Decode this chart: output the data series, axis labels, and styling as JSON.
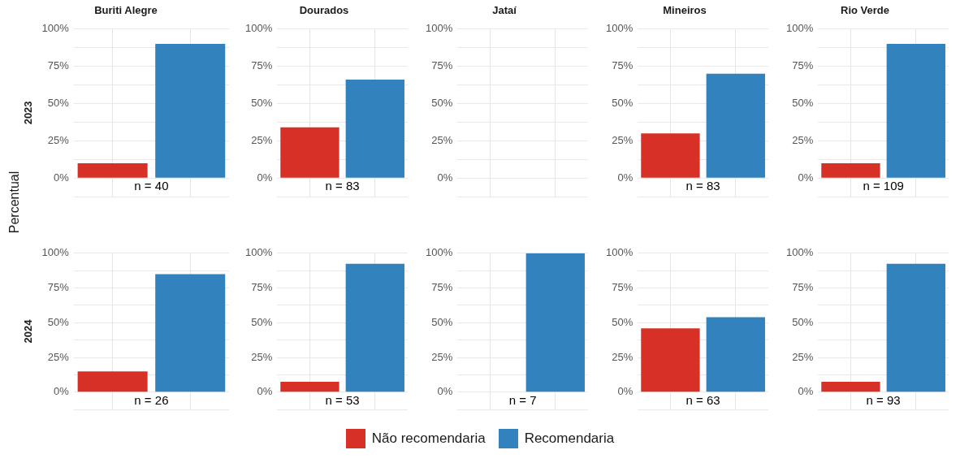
{
  "chart_data": [
    {
      "type": "bar",
      "title": "Buriti Alegre",
      "ylabel": "2023",
      "categories": [
        null,
        null
      ],
      "ylim": [
        -12.5,
        100
      ],
      "yticks": [
        {
          "value": -12.5,
          "label": null
        },
        {
          "value": 0,
          "label": "0%"
        },
        {
          "value": 12.5,
          "label": null
        },
        {
          "value": 25,
          "label": "25%"
        },
        {
          "value": 37.5,
          "label": null
        },
        {
          "value": 50,
          "label": "50%"
        },
        {
          "value": 62.5,
          "label": null
        },
        {
          "value": 75,
          "label": "75%"
        },
        {
          "value": 87.5,
          "label": null
        },
        {
          "value": 100,
          "label": "100%"
        }
      ],
      "grid": true,
      "tick_labels": "y",
      "legend": "bottom",
      "annotations": [
        "n = 40",
        "Percentual"
      ],
      "series": [
        {
          "name": "Não recomendaria",
          "color": "#d73027",
          "values": [
            10,
            null
          ]
        },
        {
          "name": "Recomendaria",
          "color": "#3182bd",
          "values": [
            null,
            90
          ]
        }
      ]
    },
    {
      "type": "bar",
      "title": "Dourados",
      "categories": [
        null,
        null
      ],
      "ylim": [
        -12.5,
        100
      ],
      "yticks": [
        {
          "value": -12.5,
          "label": null
        },
        {
          "value": 0,
          "label": "0%"
        },
        {
          "value": 12.5,
          "label": null
        },
        {
          "value": 25,
          "label": "25%"
        },
        {
          "value": 37.5,
          "label": null
        },
        {
          "value": 50,
          "label": "50%"
        },
        {
          "value": 62.5,
          "label": null
        },
        {
          "value": 75,
          "label": "75%"
        },
        {
          "value": 87.5,
          "label": null
        },
        {
          "value": 100,
          "label": "100%"
        }
      ],
      "grid": true,
      "tick_labels": "y",
      "annotations": [
        "n = 83"
      ],
      "series": [
        {
          "color": "#d73027",
          "values": [
            34,
            null
          ]
        },
        {
          "color": "#3182bd",
          "values": [
            null,
            66
          ]
        }
      ]
    },
    {
      "type": "bar",
      "title": "Jataí",
      "categories": [
        null,
        null
      ],
      "ylim": [
        -12.5,
        100
      ],
      "yticks": [
        {
          "value": -12.5,
          "label": null
        },
        {
          "value": 0,
          "label": "0%"
        },
        {
          "value": 12.5,
          "label": null
        },
        {
          "value": 25,
          "label": "25%"
        },
        {
          "value": 37.5,
          "label": null
        },
        {
          "value": 50,
          "label": "50%"
        },
        {
          "value": 62.5,
          "label": null
        },
        {
          "value": 75,
          "label": "75%"
        },
        {
          "value": 87.5,
          "label": null
        },
        {
          "value": 100,
          "label": "100%"
        }
      ],
      "grid": true,
      "tick_labels": "y",
      "series": [
        {
          "color": "#d73027",
          "values": [
            null,
            null
          ]
        },
        {
          "color": "#3182bd",
          "values": [
            null,
            null
          ]
        }
      ]
    },
    {
      "type": "bar",
      "title": "Mineiros",
      "categories": [
        null,
        null
      ],
      "ylim": [
        -12.5,
        100
      ],
      "yticks": [
        {
          "value": -12.5,
          "label": null
        },
        {
          "value": 0,
          "label": "0%"
        },
        {
          "value": 12.5,
          "label": null
        },
        {
          "value": 25,
          "label": "25%"
        },
        {
          "value": 37.5,
          "label": null
        },
        {
          "value": 50,
          "label": "50%"
        },
        {
          "value": 62.5,
          "label": null
        },
        {
          "value": 75,
          "label": "75%"
        },
        {
          "value": 87.5,
          "label": null
        },
        {
          "value": 100,
          "label": "100%"
        }
      ],
      "grid": true,
      "tick_labels": "y",
      "annotations": [
        "n = 83"
      ],
      "series": [
        {
          "color": "#d73027",
          "values": [
            30,
            null
          ]
        },
        {
          "color": "#3182bd",
          "values": [
            null,
            70
          ]
        }
      ]
    },
    {
      "type": "bar",
      "title": "Rio Verde",
      "categories": [
        null,
        null
      ],
      "ylim": [
        -12.5,
        100
      ],
      "yticks": [
        {
          "value": -12.5,
          "label": null
        },
        {
          "value": 0,
          "label": "0%"
        },
        {
          "value": 12.5,
          "label": null
        },
        {
          "value": 25,
          "label": "25%"
        },
        {
          "value": 37.5,
          "label": null
        },
        {
          "value": 50,
          "label": "50%"
        },
        {
          "value": 62.5,
          "label": null
        },
        {
          "value": 75,
          "label": "75%"
        },
        {
          "value": 87.5,
          "label": null
        },
        {
          "value": 100,
          "label": "100%"
        }
      ],
      "grid": true,
      "tick_labels": "y",
      "annotations": [
        "n = 109"
      ],
      "series": [
        {
          "color": "#d73027",
          "values": [
            10,
            null
          ]
        },
        {
          "color": "#3182bd",
          "values": [
            null,
            90
          ]
        }
      ]
    },
    {
      "type": "bar",
      "ylabel": "2024",
      "categories": [
        null,
        null
      ],
      "ylim": [
        -12.5,
        100
      ],
      "yticks": [
        {
          "value": -12.5,
          "label": null
        },
        {
          "value": 0,
          "label": "0%"
        },
        {
          "value": 12.5,
          "label": null
        },
        {
          "value": 25,
          "label": "25%"
        },
        {
          "value": 37.5,
          "label": null
        },
        {
          "value": 50,
          "label": "50%"
        },
        {
          "value": 62.5,
          "label": null
        },
        {
          "value": 75,
          "label": "75%"
        },
        {
          "value": 87.5,
          "label": null
        },
        {
          "value": 100,
          "label": "100%"
        }
      ],
      "grid": true,
      "tick_labels": "y",
      "annotations": [
        "n = 26"
      ],
      "series": [
        {
          "color": "#d73027",
          "values": [
            15,
            null
          ]
        },
        {
          "color": "#3182bd",
          "values": [
            null,
            85
          ]
        }
      ]
    },
    {
      "type": "bar",
      "categories": [
        null,
        null
      ],
      "ylim": [
        -12.5,
        100
      ],
      "yticks": [
        {
          "value": -12.5,
          "label": null
        },
        {
          "value": 0,
          "label": "0%"
        },
        {
          "value": 12.5,
          "label": null
        },
        {
          "value": 25,
          "label": "25%"
        },
        {
          "value": 37.5,
          "label": null
        },
        {
          "value": 50,
          "label": "50%"
        },
        {
          "value": 62.5,
          "label": null
        },
        {
          "value": 75,
          "label": "75%"
        },
        {
          "value": 87.5,
          "label": null
        },
        {
          "value": 100,
          "label": "100%"
        }
      ],
      "grid": true,
      "tick_labels": "y",
      "annotations": [
        "n = 53"
      ],
      "series": [
        {
          "color": "#d73027",
          "values": [
            7.5,
            null
          ]
        },
        {
          "color": "#3182bd",
          "values": [
            null,
            92.5
          ]
        }
      ]
    },
    {
      "type": "bar",
      "categories": [
        null,
        null
      ],
      "ylim": [
        -12.5,
        100
      ],
      "yticks": [
        {
          "value": -12.5,
          "label": null
        },
        {
          "value": 0,
          "label": "0%"
        },
        {
          "value": 12.5,
          "label": null
        },
        {
          "value": 25,
          "label": "25%"
        },
        {
          "value": 37.5,
          "label": null
        },
        {
          "value": 50,
          "label": "50%"
        },
        {
          "value": 62.5,
          "label": null
        },
        {
          "value": 75,
          "label": "75%"
        },
        {
          "value": 87.5,
          "label": null
        },
        {
          "value": 100,
          "label": "100%"
        }
      ],
      "grid": true,
      "tick_labels": "y",
      "annotations": [
        "n = 7"
      ],
      "series": [
        {
          "color": "#d73027",
          "values": [
            0,
            null
          ]
        },
        {
          "color": "#3182bd",
          "values": [
            null,
            100
          ]
        }
      ]
    },
    {
      "type": "bar",
      "categories": [
        null,
        null
      ],
      "ylim": [
        -12.5,
        100
      ],
      "yticks": [
        {
          "value": -12.5,
          "label": null
        },
        {
          "value": 0,
          "label": "0%"
        },
        {
          "value": 12.5,
          "label": null
        },
        {
          "value": 25,
          "label": "25%"
        },
        {
          "value": 37.5,
          "label": null
        },
        {
          "value": 50,
          "label": "50%"
        },
        {
          "value": 62.5,
          "label": null
        },
        {
          "value": 75,
          "label": "75%"
        },
        {
          "value": 87.5,
          "label": null
        },
        {
          "value": 100,
          "label": "100%"
        }
      ],
      "grid": true,
      "tick_labels": "y",
      "annotations": [
        "n = 63"
      ],
      "series": [
        {
          "color": "#d73027",
          "values": [
            46,
            null
          ]
        },
        {
          "color": "#3182bd",
          "values": [
            null,
            54
          ]
        }
      ]
    },
    {
      "type": "bar",
      "categories": [
        null,
        null
      ],
      "ylim": [
        -12.5,
        100
      ],
      "yticks": [
        {
          "value": -12.5,
          "label": null
        },
        {
          "value": 0,
          "label": "0%"
        },
        {
          "value": 12.5,
          "label": null
        },
        {
          "value": 25,
          "label": "25%"
        },
        {
          "value": 37.5,
          "label": null
        },
        {
          "value": 50,
          "label": "50%"
        },
        {
          "value": 62.5,
          "label": null
        },
        {
          "value": 75,
          "label": "75%"
        },
        {
          "value": 87.5,
          "label": null
        },
        {
          "value": 100,
          "label": "100%"
        }
      ],
      "grid": true,
      "tick_labels": "y",
      "annotations": [
        "n = 93"
      ],
      "series": [
        {
          "color": "#d73027",
          "values": [
            7.5,
            null
          ]
        },
        {
          "color": "#3182bd",
          "values": [
            null,
            92.5
          ]
        }
      ]
    }
  ]
}
